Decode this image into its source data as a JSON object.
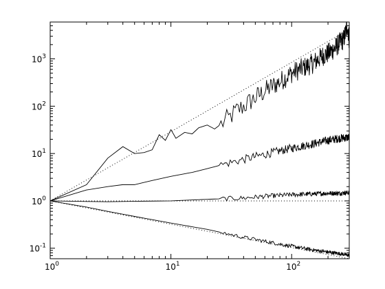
{
  "chart_data": {
    "type": "line",
    "x_scale": "log",
    "y_scale": "log",
    "xlim": [
      1,
      300
    ],
    "ylim": [
      0.06,
      6000
    ],
    "grid": false,
    "legend": "none",
    "x_ticks": [
      {
        "value": 1,
        "base": "10",
        "exp": "0"
      },
      {
        "value": 10,
        "base": "10",
        "exp": "1"
      },
      {
        "value": 100,
        "base": "10",
        "exp": "2"
      }
    ],
    "y_ticks": [
      {
        "value": 0.1,
        "base": "10",
        "exp": "-1"
      },
      {
        "value": 1,
        "base": "10",
        "exp": "0"
      },
      {
        "value": 10,
        "base": "10",
        "exp": "1"
      },
      {
        "value": 100,
        "base": "10",
        "exp": "2"
      },
      {
        "value": 1000,
        "base": "10",
        "exp": "3"
      }
    ],
    "series": [
      {
        "style": "solid",
        "color": "#000000",
        "points": [
          [
            1,
            1
          ],
          [
            2,
            2.2
          ],
          [
            3,
            8
          ],
          [
            4,
            14
          ],
          [
            5,
            10
          ],
          [
            6,
            10.5
          ],
          [
            7,
            12
          ],
          [
            8,
            25
          ],
          [
            9,
            19
          ],
          [
            10,
            32
          ],
          [
            11,
            21
          ],
          [
            13,
            28
          ],
          [
            15,
            26
          ],
          [
            17,
            35
          ],
          [
            20,
            40
          ],
          [
            23,
            33
          ],
          [
            27,
            45
          ],
          [
            30,
            55
          ],
          [
            35,
            80
          ],
          [
            40,
            100
          ],
          [
            50,
            150
          ],
          [
            60,
            210
          ],
          [
            70,
            270
          ],
          [
            80,
            330
          ],
          [
            100,
            500
          ],
          [
            120,
            620
          ],
          [
            150,
            800
          ],
          [
            180,
            1150
          ],
          [
            200,
            1300
          ],
          [
            230,
            1700
          ],
          [
            250,
            2200
          ],
          [
            270,
            2600
          ],
          [
            290,
            5000
          ],
          [
            300,
            2500
          ]
        ]
      },
      {
        "style": "solid",
        "color": "#000000",
        "points": [
          [
            1,
            1
          ],
          [
            2,
            1.7
          ],
          [
            3,
            2.0
          ],
          [
            4,
            2.2
          ],
          [
            5,
            2.2
          ],
          [
            7,
            2.7
          ],
          [
            10,
            3.3
          ],
          [
            15,
            4.0
          ],
          [
            20,
            4.8
          ],
          [
            30,
            6.3
          ],
          [
            40,
            7.5
          ],
          [
            50,
            8.6
          ],
          [
            70,
            10.5
          ],
          [
            100,
            13.0
          ],
          [
            150,
            16.0
          ],
          [
            200,
            19.0
          ],
          [
            250,
            21.0
          ],
          [
            300,
            22.0
          ]
        ]
      },
      {
        "style": "solid",
        "color": "#000000",
        "points": [
          [
            1,
            1
          ],
          [
            2,
            0.97
          ],
          [
            3,
            0.96
          ],
          [
            5,
            0.98
          ],
          [
            10,
            1.0
          ],
          [
            20,
            1.08
          ],
          [
            40,
            1.15
          ],
          [
            60,
            1.25
          ],
          [
            100,
            1.35
          ],
          [
            150,
            1.4
          ],
          [
            200,
            1.45
          ],
          [
            250,
            1.45
          ],
          [
            300,
            1.5
          ]
        ]
      },
      {
        "style": "solid",
        "color": "#000000",
        "points": [
          [
            1,
            1
          ],
          [
            2,
            0.74
          ],
          [
            3,
            0.6
          ],
          [
            5,
            0.47
          ],
          [
            10,
            0.34
          ],
          [
            20,
            0.25
          ],
          [
            40,
            0.17
          ],
          [
            60,
            0.14
          ],
          [
            100,
            0.11
          ],
          [
            150,
            0.092
          ],
          [
            200,
            0.083
          ],
          [
            250,
            0.077
          ],
          [
            300,
            0.071
          ]
        ]
      },
      {
        "style": "dotted",
        "color": "#000000",
        "points": [
          [
            1,
            1
          ],
          [
            300,
            4200
          ]
        ]
      },
      {
        "style": "dotted",
        "color": "#000000",
        "points": [
          [
            1,
            1
          ],
          [
            300,
            1
          ]
        ]
      },
      {
        "style": "dotted",
        "color": "#000000",
        "points": [
          [
            1,
            1
          ],
          [
            300,
            0.06
          ]
        ]
      }
    ]
  }
}
